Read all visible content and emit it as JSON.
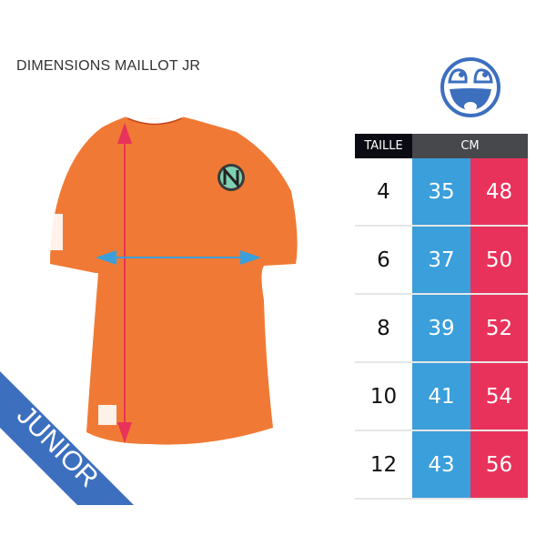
{
  "title": "DIMENSIONS MAILLOT JR",
  "banner": "JUNIOR",
  "table": {
    "headers": [
      "TAILLE",
      "CM"
    ],
    "rows": [
      {
        "size": "4",
        "width": "35",
        "length": "48"
      },
      {
        "size": "6",
        "width": "37",
        "length": "50"
      },
      {
        "size": "8",
        "width": "39",
        "length": "52"
      },
      {
        "size": "10",
        "width": "41",
        "length": "54"
      },
      {
        "size": "12",
        "width": "43",
        "length": "56"
      }
    ]
  },
  "colors": {
    "shirt": "#f07a35",
    "blue": "#3a9fdb",
    "red": "#e9325b",
    "banner": "#3d6fbf",
    "header_dark": "#0b0b14",
    "header_gray": "#47484c"
  },
  "icons": [
    "smiley-icon",
    "team-logo-icon"
  ]
}
